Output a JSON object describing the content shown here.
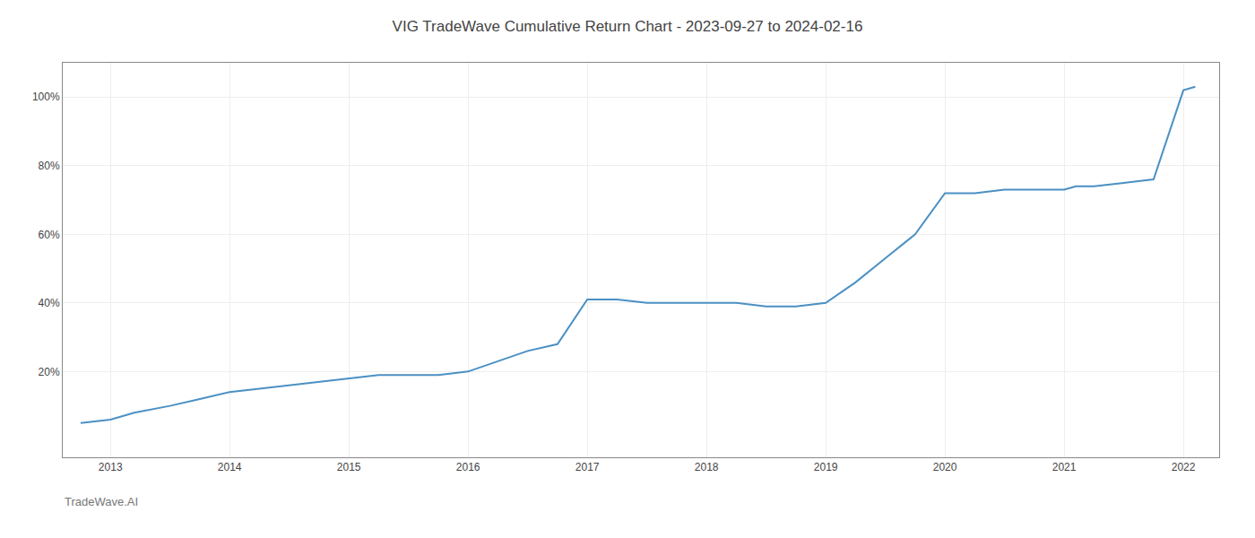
{
  "chart_data": {
    "type": "line",
    "title": "VIG TradeWave Cumulative Return Chart - 2023-09-27 to 2024-02-16",
    "annotations": [
      "TradeWave.AI"
    ],
    "color": "#4a90c4",
    "x": [
      2012.75,
      2013.0,
      2013.2,
      2013.5,
      2013.75,
      2014.0,
      2014.25,
      2014.5,
      2014.75,
      2015.0,
      2015.25,
      2015.5,
      2015.75,
      2016.0,
      2016.25,
      2016.5,
      2016.75,
      2017.0,
      2017.25,
      2017.5,
      2017.75,
      2018.0,
      2018.25,
      2018.5,
      2018.75,
      2019.0,
      2019.25,
      2019.5,
      2019.75,
      2020.0,
      2020.25,
      2020.5,
      2020.75,
      2021.0,
      2021.1,
      2021.25,
      2021.5,
      2021.75,
      2022.0,
      2022.1
    ],
    "values": [
      5,
      6,
      8,
      10,
      12,
      14,
      15,
      16,
      17,
      18,
      19,
      19,
      19,
      20,
      23,
      26,
      28,
      41,
      41,
      40,
      40,
      40,
      40,
      39,
      39,
      40,
      46,
      53,
      60,
      72,
      72,
      73,
      73,
      73,
      74,
      74,
      75,
      76,
      102,
      103
    ],
    "xlim": [
      2012.6,
      2022.3
    ],
    "xticks": [
      2013,
      2014,
      2015,
      2016,
      2017,
      2018,
      2019,
      2020,
      2021,
      2022
    ],
    "ylim": [
      -5,
      110
    ],
    "yticks": [
      {
        "value": 20,
        "label": "20%"
      },
      {
        "value": 40,
        "label": "40%"
      },
      {
        "value": 60,
        "label": "60%"
      },
      {
        "value": 80,
        "label": "80%"
      },
      {
        "value": 100,
        "label": "100%"
      }
    ],
    "grid": true
  }
}
